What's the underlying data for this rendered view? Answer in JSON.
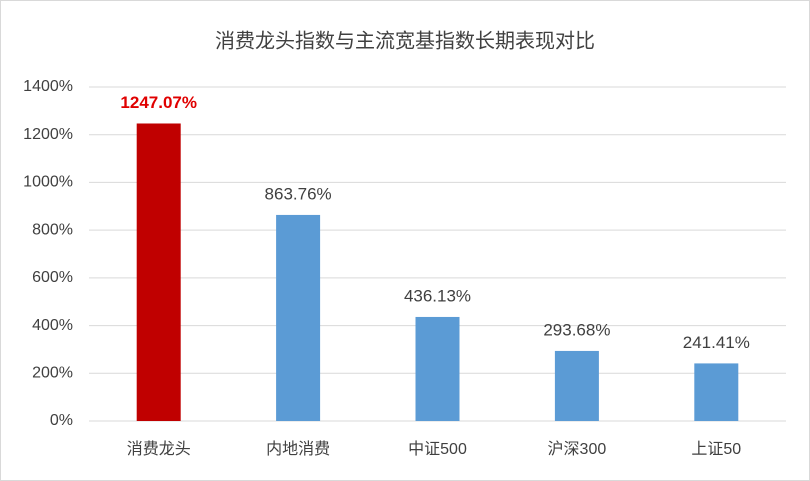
{
  "chart_data": {
    "type": "bar",
    "title": "消费龙头指数与主流宽基指数长期表现对比",
    "categories": [
      "消费龙头",
      "内地消费",
      "中证500",
      "沪深300",
      "上证50"
    ],
    "values": [
      1247.07,
      863.76,
      436.13,
      293.68,
      241.41
    ],
    "value_labels": [
      "1247.07%",
      "863.76%",
      "436.13%",
      "293.68%",
      "241.41%"
    ],
    "color": "#5b9bd5",
    "colors": [
      "#c00000",
      "#5b9bd5",
      "#5b9bd5",
      "#5b9bd5",
      "#5b9bd5"
    ],
    "ylim": [
      0,
      1400
    ],
    "yticks": [
      {
        "value": 0,
        "label": "0%"
      },
      {
        "value": 200,
        "label": "200%"
      },
      {
        "value": 400,
        "label": "400%"
      },
      {
        "value": 600,
        "label": "600%"
      },
      {
        "value": 800,
        "label": "800%"
      },
      {
        "value": 1000,
        "label": "1000%"
      },
      {
        "value": 1200,
        "label": "1200%"
      },
      {
        "value": 1400,
        "label": "1400%"
      }
    ],
    "grid": true
  }
}
